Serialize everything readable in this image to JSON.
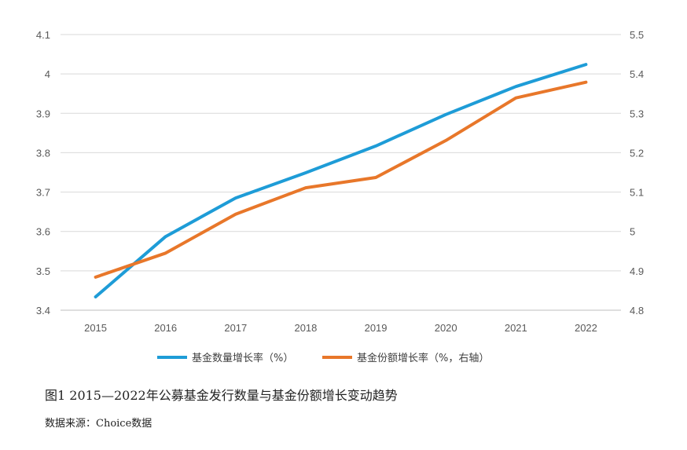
{
  "chart_data": {
    "type": "line",
    "categories": [
      "2015",
      "2016",
      "2017",
      "2018",
      "2019",
      "2020",
      "2021",
      "2022"
    ],
    "y_left": {
      "ticks": [
        "4.1",
        "4",
        "3.9",
        "3.8",
        "3.7",
        "3.6",
        "3.5",
        "3.4"
      ],
      "ylim": [
        3.4,
        4.1
      ]
    },
    "y_right": {
      "ticks": [
        "5.5",
        "5.4",
        "5.3",
        "5.2",
        "5.1",
        "5",
        "4.9",
        "4.8"
      ],
      "ylim": [
        4.8,
        5.5
      ]
    },
    "grid": true,
    "legend_position": "bottom",
    "series": [
      {
        "name": "基金数量增长率（%）",
        "axis": "left",
        "color": "#1E9CD7",
        "values": [
          3.434,
          3.587,
          3.685,
          3.749,
          3.817,
          3.897,
          3.968,
          4.024
        ]
      },
      {
        "name": "基金份额增长率（%，右轴）",
        "axis": "right",
        "color": "#E8772A",
        "values": [
          4.884,
          4.945,
          5.044,
          5.111,
          5.137,
          5.231,
          5.339,
          5.379
        ]
      }
    ]
  },
  "caption": "图1 2015—2022年公募基金发行数量与基金份额增长变动趋势",
  "source": "数据来源：Choice数据"
}
